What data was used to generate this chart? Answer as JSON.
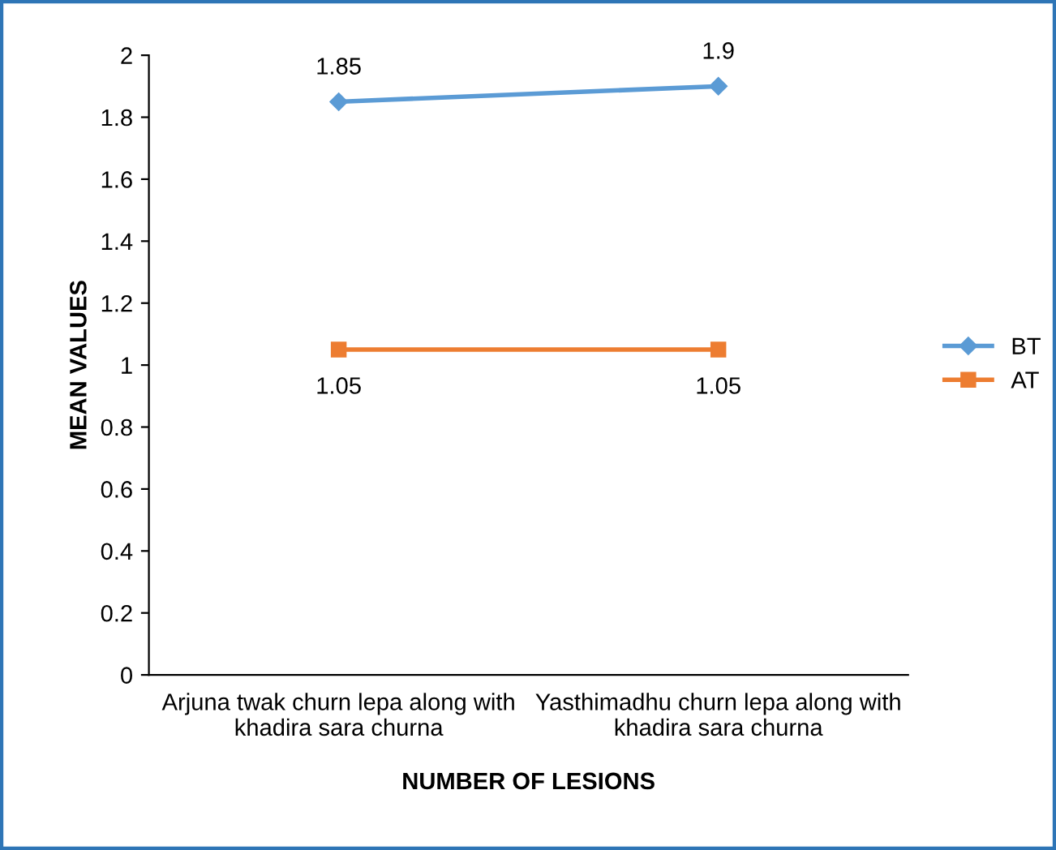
{
  "chart_data": {
    "type": "line",
    "xlabel": "NUMBER OF LESIONS",
    "ylabel": "MEAN VALUES",
    "categories": [
      "Arjuna twak churn lepa along with\nkhadira sara churna",
      "Yasthimadhu churn lepa along with\nkhadira sara churna"
    ],
    "series": [
      {
        "name": "BT",
        "color": "#5b9bd5",
        "values": [
          1.85,
          1.9
        ],
        "marker": "diamond"
      },
      {
        "name": "AT",
        "color": "#ed7d31",
        "values": [
          1.05,
          1.05
        ],
        "marker": "square"
      }
    ],
    "ylim": [
      0,
      2
    ],
    "yticks": [
      0,
      0.2,
      0.4,
      0.6,
      0.8,
      1,
      1.2,
      1.4,
      1.6,
      1.8,
      2
    ],
    "data_labels": true,
    "legend": "right",
    "grid": false
  }
}
